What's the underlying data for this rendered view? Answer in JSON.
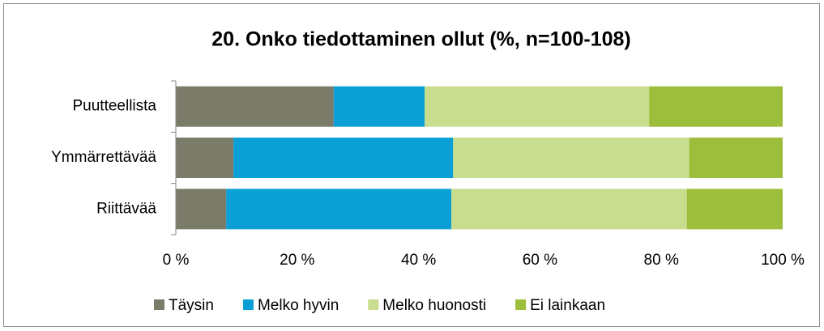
{
  "chart_data": {
    "type": "stacked-bar-horizontal",
    "title": "20. Onko tiedottaminen ollut (%, n=100-108)",
    "categories": [
      "Puutteellista",
      "Ymmärrettävää",
      "Riittävää"
    ],
    "series": [
      {
        "name": "Täysin",
        "color": "#7b7b69",
        "values": [
          26.0,
          9.5,
          8.3
        ]
      },
      {
        "name": "Melko hyvin",
        "color": "#0aa0d6",
        "values": [
          15.0,
          36.2,
          37.1
        ]
      },
      {
        "name": "Melko huonosti",
        "color": "#c9dd8f",
        "values": [
          37.0,
          38.9,
          38.8
        ]
      },
      {
        "name": "Ei lainkaan",
        "color": "#9dbd3c",
        "values": [
          22.0,
          15.4,
          15.8
        ]
      }
    ],
    "xlim": [
      0,
      100
    ],
    "xticks": [
      {
        "value": 0,
        "label": "0 %"
      },
      {
        "value": 20,
        "label": "20 %"
      },
      {
        "value": 40,
        "label": "40 %"
      },
      {
        "value": 60,
        "label": "60 %"
      },
      {
        "value": 80,
        "label": "80 %"
      },
      {
        "value": 100,
        "label": "100 %"
      }
    ],
    "legend": "bottom"
  }
}
